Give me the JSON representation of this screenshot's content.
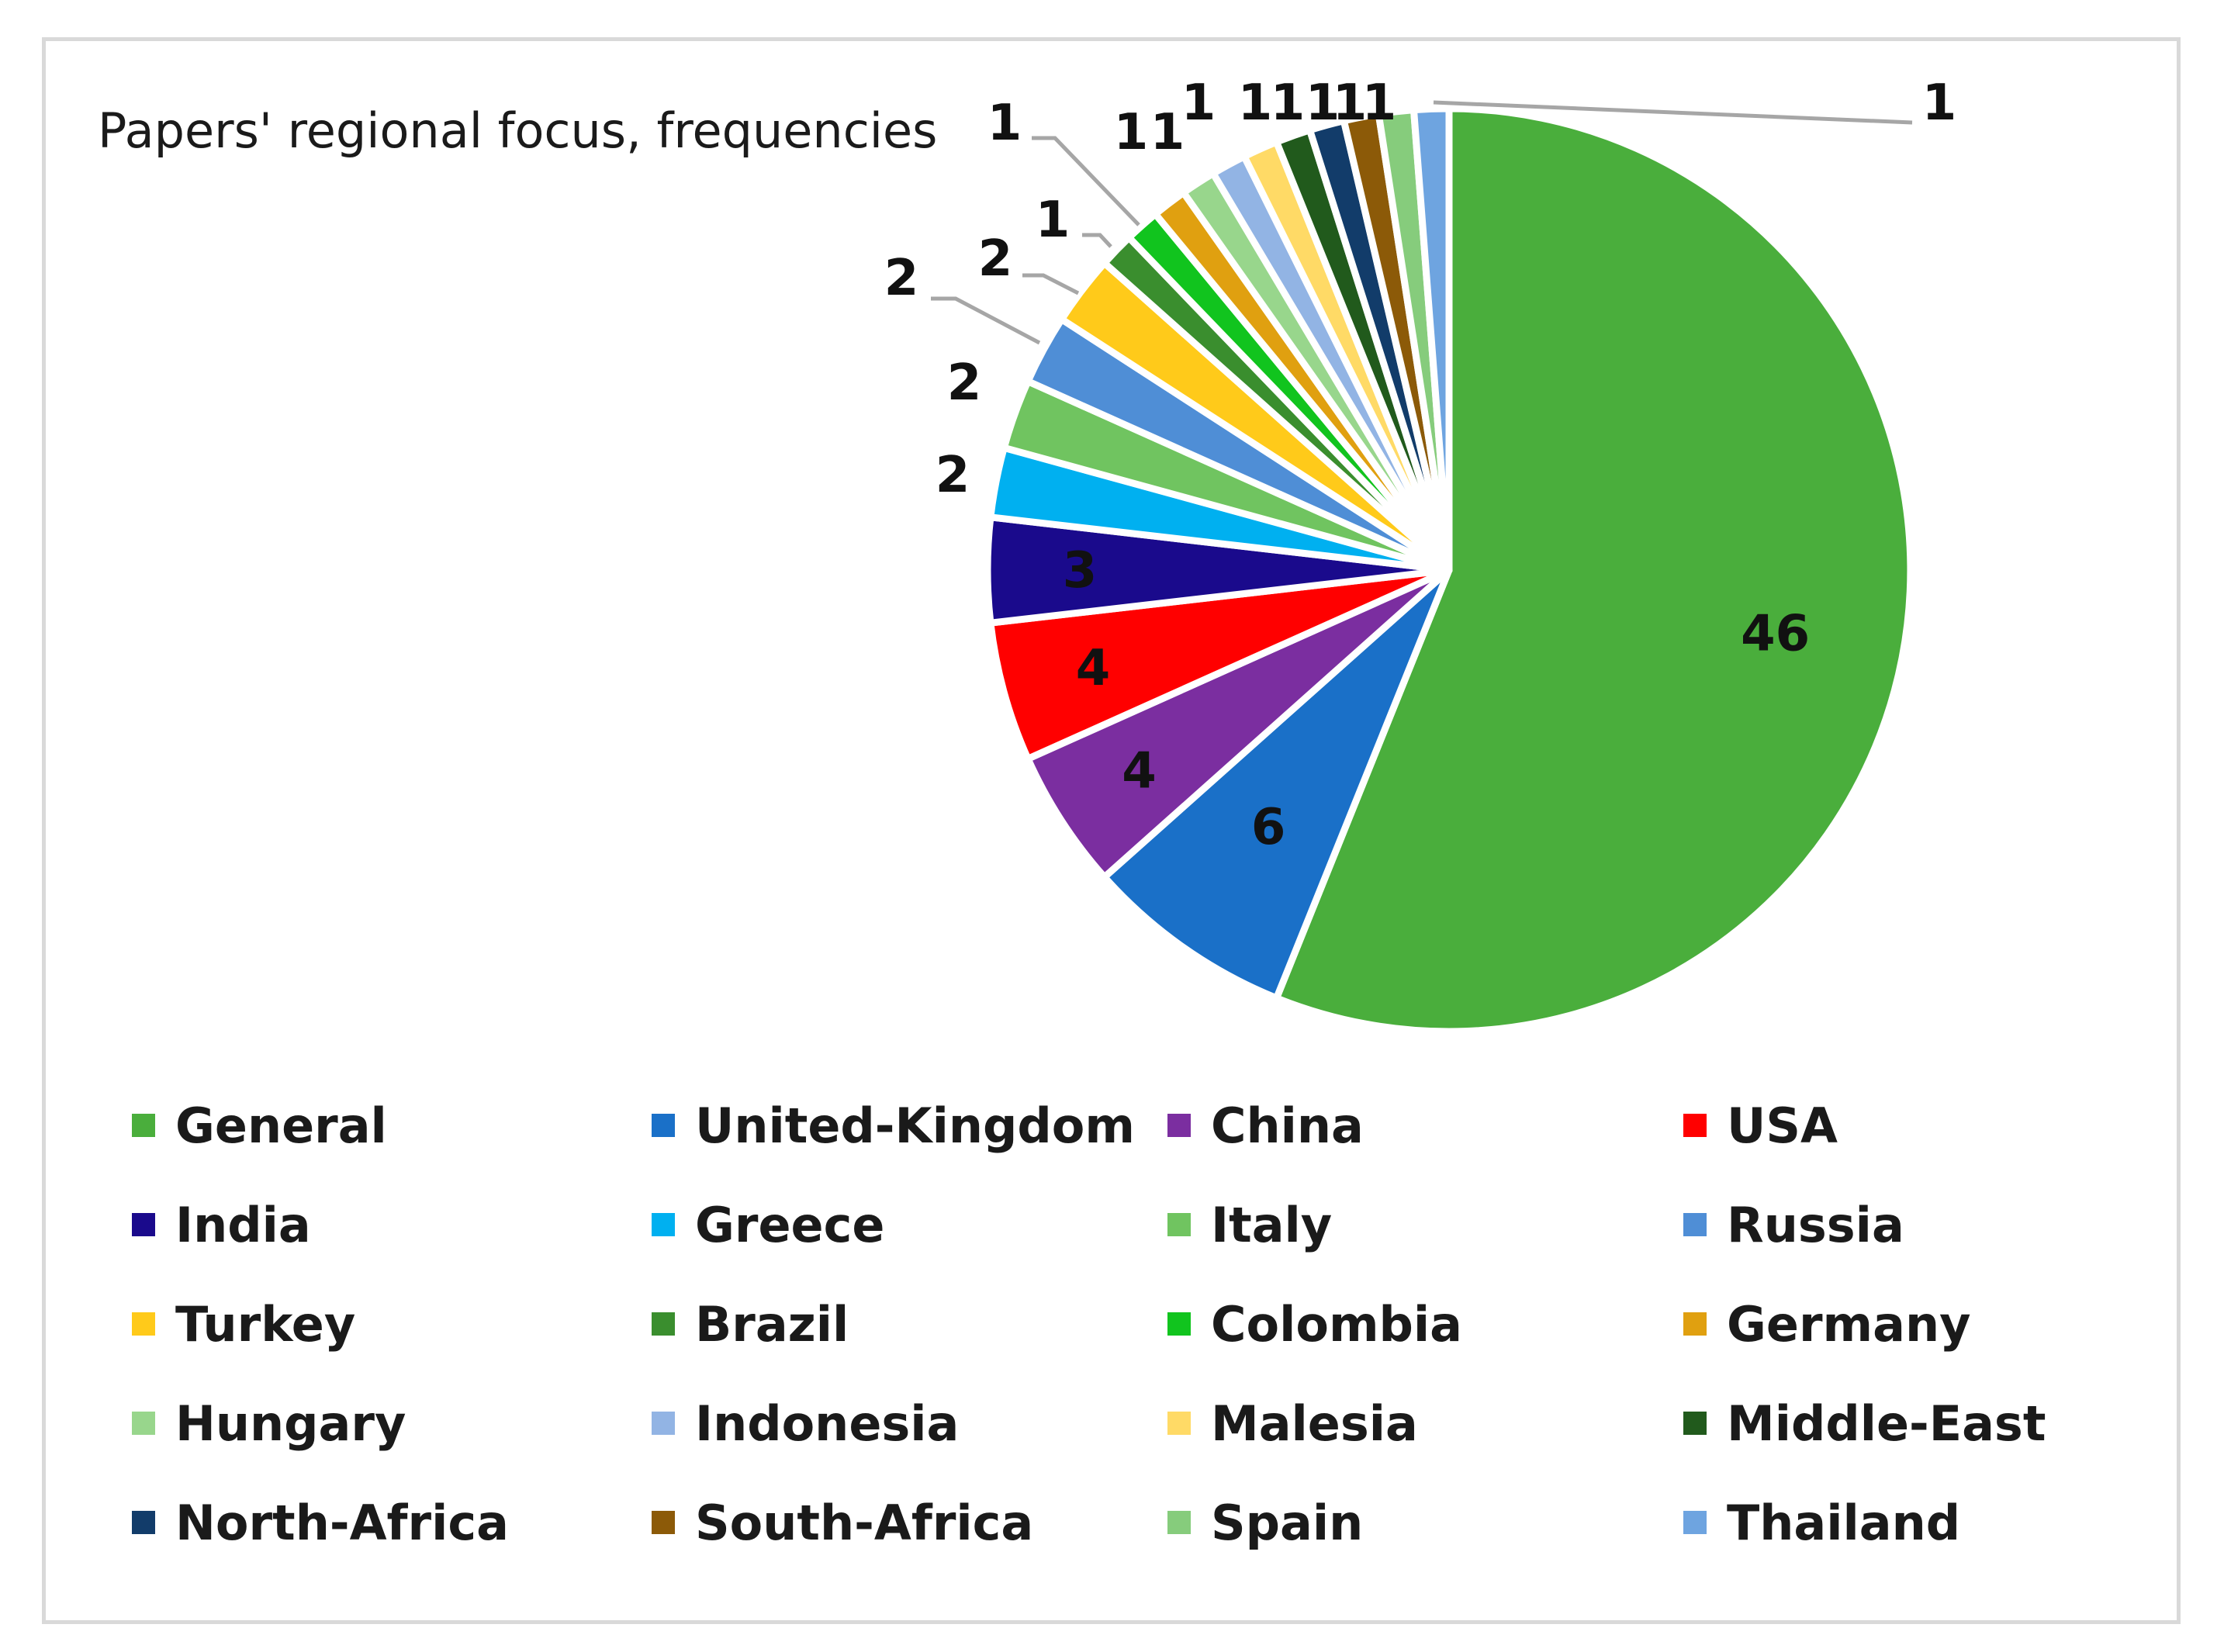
{
  "chart_data": {
    "type": "pie",
    "title": "Papers' regional focus, frequencies",
    "legend_position": "bottom",
    "categories": [
      "General",
      "United-Kingdom",
      "China",
      "USA",
      "India",
      "Greece",
      "Italy",
      "Russia",
      "Turkey",
      "Brazil",
      "Colombia",
      "Germany",
      "Hungary",
      "Indonesia",
      "Malesia",
      "Middle-East",
      "North-Africa",
      "South-Africa",
      "Spain",
      "Thailand"
    ],
    "values": [
      46,
      6,
      4,
      4,
      3,
      2,
      2,
      2,
      2,
      1,
      1,
      1,
      1,
      1,
      1,
      1,
      1,
      1,
      1,
      1
    ],
    "colors": [
      "#4aae3c",
      "#1a70c8",
      "#7b2ea0",
      "#ff0000",
      "#1a0a8c",
      "#00b0f0",
      "#70c460",
      "#4f8ed6",
      "#ffca1a",
      "#3a8e2e",
      "#11c41e",
      "#e0a010",
      "#98d68c",
      "#92b4e4",
      "#ffda66",
      "#215a1c",
      "#123c6a",
      "#8c5a08",
      "#86cc7c",
      "#6ea4e0"
    ]
  }
}
